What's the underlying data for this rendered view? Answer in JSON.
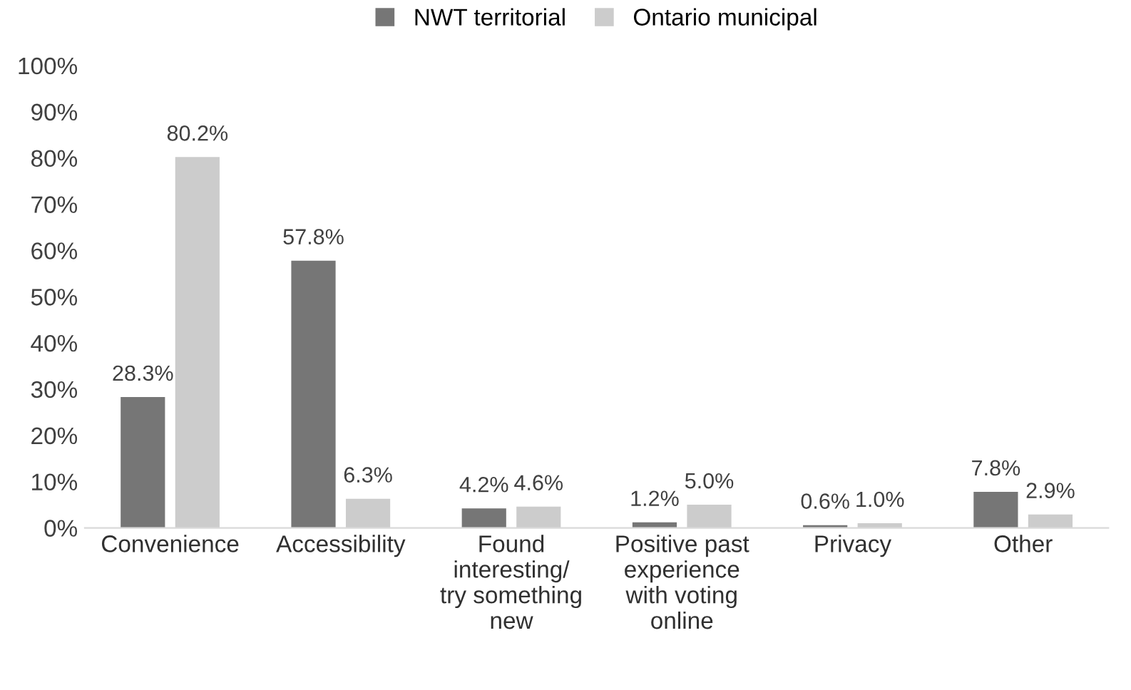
{
  "chart_data": {
    "type": "bar",
    "categories": [
      "Convenience",
      "Accessibility",
      "Found\ninteresting/\ntry something\nnew",
      "Positive past\nexperience\nwith voting\nonline",
      "Privacy",
      "Other"
    ],
    "series": [
      {
        "name": "NWT territorial",
        "color": "#767676",
        "values": [
          28.3,
          57.8,
          4.2,
          1.2,
          0.6,
          7.8
        ],
        "value_labels": [
          "28.3%",
          "57.8%",
          "4.2%",
          "1.2%",
          "0.6%",
          "7.8%"
        ]
      },
      {
        "name": "Ontario municipal",
        "color": "#cccccc",
        "values": [
          80.2,
          6.3,
          4.6,
          5.0,
          1.0,
          2.9
        ],
        "value_labels": [
          "80.2%",
          "6.3%",
          "4.6%",
          "5.0%",
          "1.0%",
          "2.9%"
        ]
      }
    ],
    "ylim": [
      0,
      100
    ],
    "yticks": [
      {
        "value": 0,
        "label": "0%"
      },
      {
        "value": 10,
        "label": "10%"
      },
      {
        "value": 20,
        "label": "20%"
      },
      {
        "value": 30,
        "label": "30%"
      },
      {
        "value": 40,
        "label": "40%"
      },
      {
        "value": 50,
        "label": "50%"
      },
      {
        "value": 60,
        "label": "60%"
      },
      {
        "value": 70,
        "label": "70%"
      },
      {
        "value": 80,
        "label": "80%"
      },
      {
        "value": 90,
        "label": "90%"
      },
      {
        "value": 100,
        "label": "100%"
      }
    ],
    "grid": false,
    "legend": "top"
  }
}
